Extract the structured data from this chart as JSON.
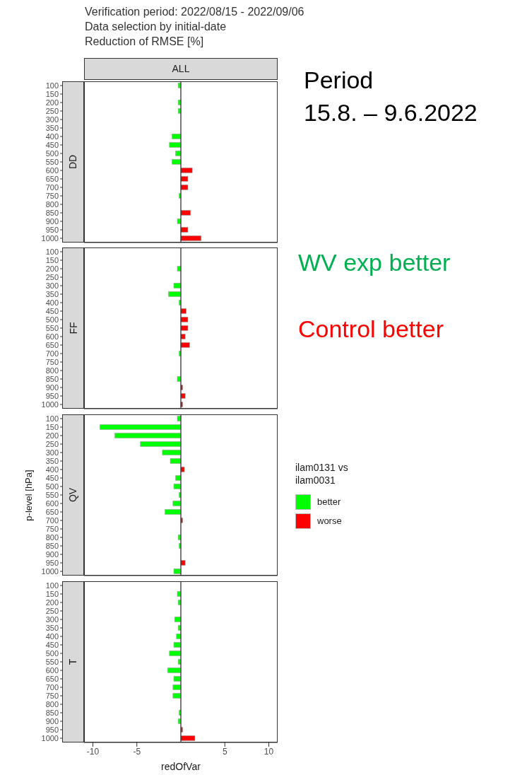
{
  "chart_data": [
    {
      "type": "bar",
      "orientation": "horizontal",
      "stacked": true,
      "title": "DD",
      "subtitle": "Verification period: 2022/08/15 - 2022/09/06",
      "annotations": [
        "Data selection by initial-date",
        "Reduction of RMSE [%]",
        "ALL",
        "Period\n15.8. – 9.6.2022",
        "WV exp better",
        "Control better"
      ],
      "categories": [
        "100",
        "150",
        "200",
        "250",
        "300",
        "350",
        "400",
        "450",
        "500",
        "550",
        "600",
        "650",
        "700",
        "750",
        "800",
        "850",
        "900",
        "950",
        "1000"
      ],
      "series": [
        {
          "color": "#00ff00",
          "values": [
            -0.3,
            null,
            -0.3,
            -0.3,
            null,
            null,
            -1.0,
            -1.3,
            -0.6,
            -1.0,
            null,
            null,
            null,
            -0.2,
            null,
            null,
            -0.4,
            null,
            null
          ]
        },
        {
          "color": "#ff0000",
          "values": [
            null,
            null,
            null,
            null,
            null,
            null,
            null,
            null,
            null,
            null,
            1.3,
            0.8,
            0.8,
            null,
            null,
            1.1,
            null,
            0.8,
            2.3
          ]
        }
      ],
      "xlim": [
        -11,
        11
      ],
      "xticks": [
        -10,
        -5,
        5,
        10
      ],
      "tick_labels": "y",
      "ref_lines": [
        {
          "axis": "x",
          "value": 0
        }
      ]
    },
    {
      "type": "bar",
      "orientation": "horizontal",
      "stacked": true,
      "title": "FF",
      "categories": [
        "100",
        "150",
        "200",
        "250",
        "300",
        "350",
        "400",
        "450",
        "500",
        "550",
        "600",
        "650",
        "700",
        "750",
        "800",
        "850",
        "900",
        "950",
        "1000"
      ],
      "series": [
        {
          "color": "#00ff00",
          "values": [
            null,
            null,
            -0.4,
            null,
            -0.8,
            -1.4,
            -0.2,
            null,
            null,
            null,
            null,
            null,
            -0.2,
            null,
            null,
            -0.4,
            null,
            null,
            null
          ]
        },
        {
          "color": "#ff0000",
          "values": [
            null,
            null,
            null,
            null,
            null,
            null,
            null,
            0.6,
            0.8,
            0.8,
            0.5,
            1.0,
            null,
            null,
            null,
            null,
            0.2,
            0.5,
            0.2
          ]
        }
      ],
      "xlim": [
        -11,
        11
      ],
      "xticks": [
        -10,
        -5,
        5,
        10
      ],
      "tick_labels": "y",
      "ref_lines": [
        {
          "axis": "x",
          "value": 0
        }
      ]
    },
    {
      "type": "bar",
      "orientation": "horizontal",
      "stacked": true,
      "title": "QV",
      "ylabel": "p-level [hPa]",
      "legend": "right",
      "legend_title": "ilam0131 vs\nilam0031",
      "categories": [
        "100",
        "150",
        "200",
        "250",
        "300",
        "350",
        "400",
        "450",
        "500",
        "550",
        "600",
        "650",
        "700",
        "750",
        "800",
        "850",
        "900",
        "950",
        "1000"
      ],
      "series": [
        {
          "name": "better",
          "color": "#00ff00",
          "values": [
            -0.4,
            -9.2,
            -7.5,
            -4.6,
            -2.1,
            -1.2,
            null,
            -0.6,
            -0.8,
            -0.2,
            -0.9,
            -1.8,
            null,
            null,
            -0.3,
            -0.2,
            null,
            null,
            -0.8
          ]
        },
        {
          "name": "worse",
          "color": "#ff0000",
          "values": [
            null,
            null,
            null,
            null,
            null,
            null,
            0.4,
            null,
            null,
            null,
            null,
            null,
            0.2,
            null,
            null,
            null,
            null,
            0.5,
            null
          ]
        }
      ],
      "xlim": [
        -11,
        11
      ],
      "xticks": [
        -10,
        -5,
        5,
        10
      ],
      "tick_labels": "y",
      "ref_lines": [
        {
          "axis": "x",
          "value": 0
        }
      ]
    },
    {
      "type": "bar",
      "orientation": "horizontal",
      "stacked": true,
      "title": "T",
      "xlabel": "redOfVar",
      "categories": [
        "100",
        "150",
        "200",
        "250",
        "300",
        "350",
        "400",
        "450",
        "500",
        "550",
        "600",
        "650",
        "700",
        "750",
        "800",
        "850",
        "900",
        "950",
        "1000"
      ],
      "series": [
        {
          "color": "#00ff00",
          "values": [
            null,
            -0.4,
            -0.3,
            null,
            -0.7,
            -0.3,
            -0.5,
            -0.8,
            -1.3,
            -0.3,
            -1.5,
            -0.8,
            -0.9,
            -0.9,
            null,
            -0.2,
            -0.3,
            null,
            null
          ]
        },
        {
          "color": "#ff0000",
          "values": [
            null,
            null,
            null,
            null,
            null,
            null,
            null,
            null,
            null,
            null,
            null,
            null,
            null,
            null,
            null,
            null,
            null,
            0.2,
            1.6
          ]
        }
      ],
      "xlim": [
        -11,
        11
      ],
      "xticks": [
        -10,
        -5,
        5,
        10
      ],
      "ref_lines": [
        {
          "axis": "x",
          "value": 0
        }
      ]
    }
  ]
}
